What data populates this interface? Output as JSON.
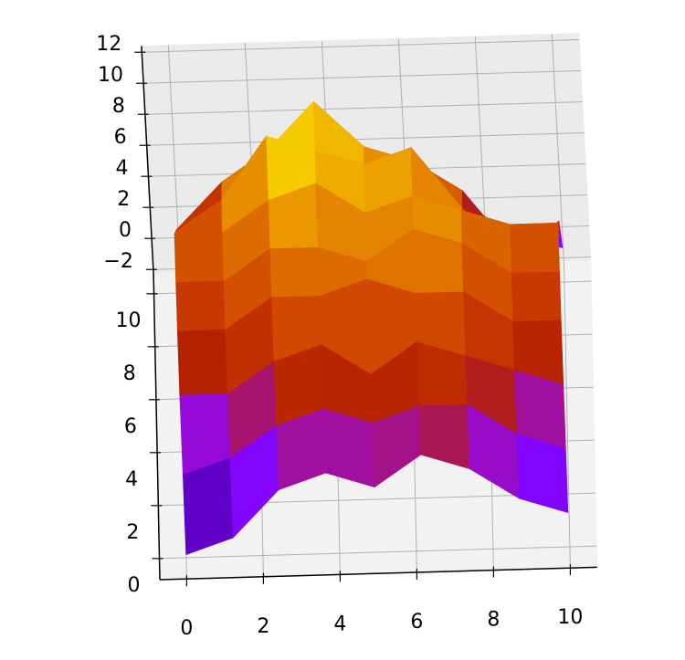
{
  "chart_data": {
    "type": "surface",
    "x": [
      0,
      1.25,
      2.5,
      3.75,
      5,
      6.25,
      7.5,
      8.75,
      10
    ],
    "y": [
      0,
      1.25,
      2.5,
      3.75,
      5,
      6.25,
      7.5,
      8.75,
      10
    ],
    "z": [
      [
        -2,
        -1,
        2,
        3,
        2,
        4,
        3,
        1,
        0
      ],
      [
        1,
        2,
        4,
        5,
        4,
        5,
        5,
        3,
        2
      ],
      [
        4,
        4,
        6,
        7,
        5,
        7,
        6,
        5,
        4
      ],
      [
        6,
        6,
        8,
        8,
        9,
        8,
        8,
        6,
        6
      ],
      [
        7,
        7,
        9,
        9,
        8,
        10,
        9,
        7,
        7
      ],
      [
        8,
        8,
        10,
        11,
        9,
        10,
        9,
        8,
        8
      ],
      [
        6,
        8,
        12,
        11,
        10,
        11,
        7,
        4,
        6
      ],
      [
        4,
        7,
        9,
        12,
        9,
        8,
        6,
        2,
        3
      ],
      [
        1,
        3,
        5,
        8,
        6,
        4,
        3,
        1,
        0
      ]
    ],
    "xlim": [
      -0.7,
      10.7
    ],
    "ylim": [
      -0.8,
      10.8
    ],
    "zlim": [
      -2.2,
      12.4
    ],
    "xticks": [
      0,
      2,
      4,
      6,
      8,
      10
    ],
    "yticks": [
      0,
      2,
      4,
      6,
      8,
      10
    ],
    "zticks": [
      {
        "value": -2,
        "label": "−2"
      },
      0,
      2,
      4,
      6,
      8,
      10,
      12
    ],
    "colormap": "gnuplot",
    "grid": true
  }
}
